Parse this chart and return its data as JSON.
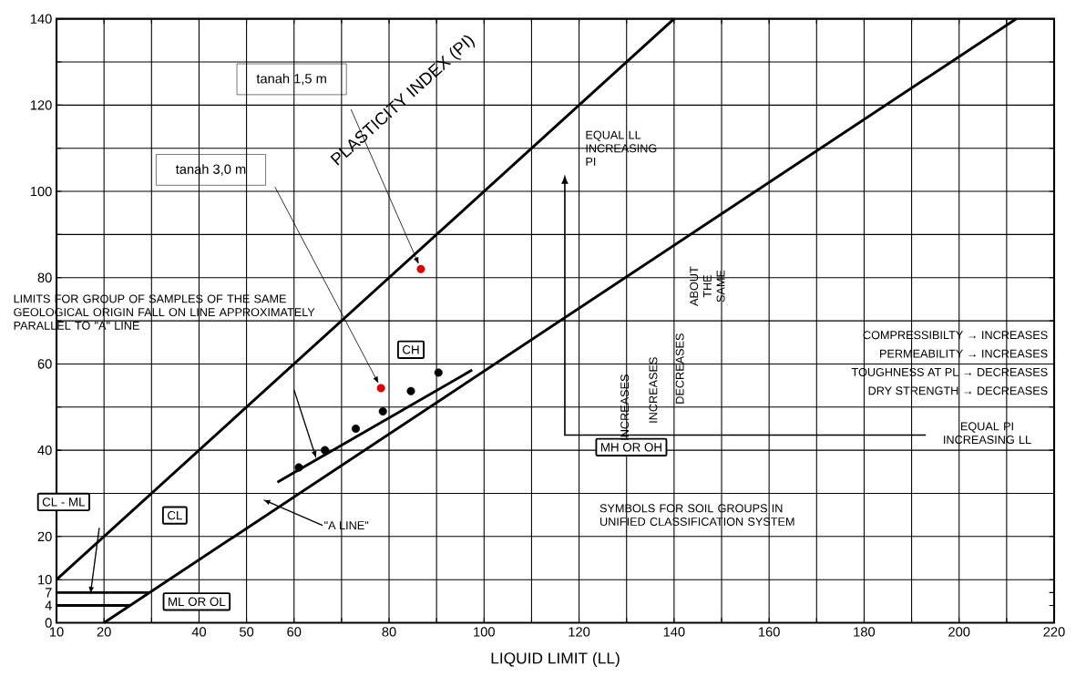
{
  "chart_data": {
    "type": "line",
    "xlabel": "LIQUID  LIMIT (LL)",
    "ylabel": "PLASTICITY INDEX (PI)",
    "xlim": [
      10,
      220
    ],
    "ylim": [
      0,
      140
    ],
    "xticks": [
      10,
      20,
      {
        "value": 30,
        "label": null
      },
      40,
      50,
      60,
      {
        "value": 70,
        "label": null
      },
      80,
      {
        "value": 90,
        "label": null
      },
      100,
      {
        "value": 110,
        "label": null
      },
      120,
      {
        "value": 130,
        "label": null
      },
      140,
      {
        "value": 150,
        "label": null
      },
      160,
      {
        "value": 170,
        "label": null
      },
      180,
      {
        "value": 190,
        "label": null
      },
      200,
      {
        "value": 210,
        "label": null
      },
      220
    ],
    "yticks": [
      0,
      4,
      7,
      10,
      20,
      {
        "value": 30,
        "label": null
      },
      40,
      {
        "value": 50,
        "label": null
      },
      60,
      {
        "value": 70,
        "label": null
      },
      80,
      {
        "value": 90,
        "label": null
      },
      100,
      {
        "value": 110,
        "label": null
      },
      120,
      {
        "value": 130,
        "label": null
      },
      140
    ],
    "grid": true,
    "series": [
      {
        "color": "#000000",
        "x": [
          10,
          140
        ],
        "values": [
          10,
          140
        ]
      },
      {
        "color": "#000000",
        "x": [
          20,
          212
        ],
        "values": [
          0,
          140
        ]
      },
      {
        "color": "#000000",
        "x": [
          10,
          25.5
        ],
        "values": [
          4,
          4
        ]
      },
      {
        "color": "#000000",
        "x": [
          10,
          29.6
        ],
        "values": [
          7,
          7
        ]
      },
      {
        "color": "#000000",
        "x": [
          56.5,
          97.5
        ],
        "values": [
          32.6,
          58.6
        ]
      },
      {
        "type": "scatter",
        "color": "#000000",
        "x": [
          61,
          66.5,
          73,
          78.7,
          84.6,
          90.4
        ],
        "values": [
          36,
          40,
          45,
          49,
          53.7,
          58
        ]
      },
      {
        "type": "scatter",
        "color": "#e00000",
        "x": [
          86.7,
          78.3
        ],
        "values": [
          82,
          54.4
        ]
      }
    ],
    "annotations": [
      "tanah 1,5 m",
      "tanah 3,0 m",
      "LIMITS FOR GROUP OF SAMPLES OF THE SAME GEOLOGICAL ORIGIN FALL ON LINE APPROXIMATELY PARALLEL TO \"A\" LINE",
      "CH",
      "CL",
      "CL - ML",
      "ML OR OL",
      "MH OR OH",
      "SYMBOLS FOR SOIL GROUPS IN UNIFIED CLASSIFICATION SYSTEM",
      "\"A LINE\"",
      "EQUAL LL INCREASING PI",
      "EQUAL PI INCREASING LL",
      "COMPRESSIBILTY → INCREASES",
      "PERMEABILITY → INCREASES",
      "TOUGHNESS AT PL → DECREASES",
      "DRY STRENGTH → DECREASES",
      "INCREASES",
      "INCREASES",
      "DECREASES",
      "ABOUT THE SAME"
    ]
  }
}
